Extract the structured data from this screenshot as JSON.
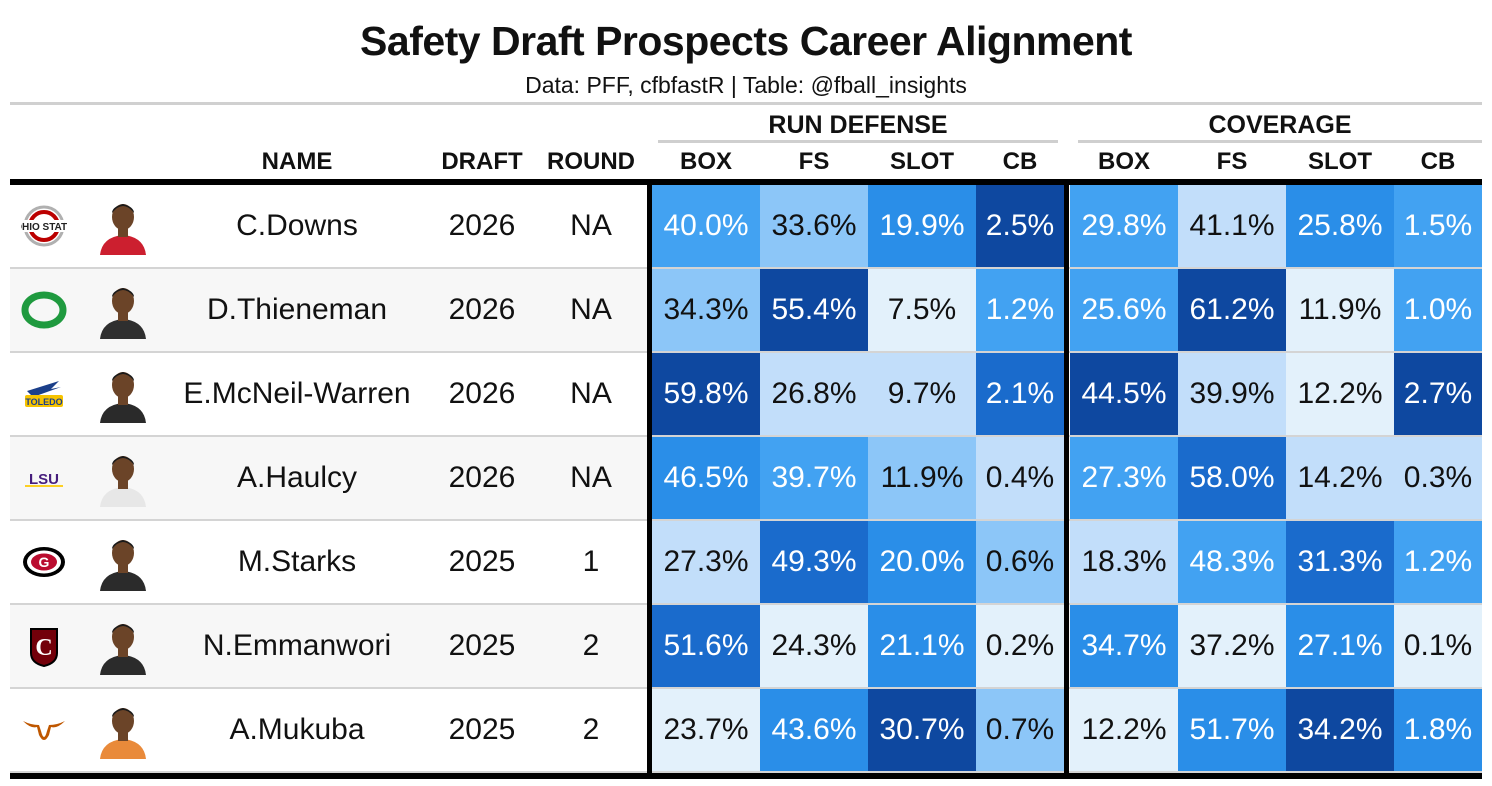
{
  "title": "Safety Draft Prospects Career Alignment",
  "subtitle": "Data: PFF, cfbfastR | Table: @fball_insights",
  "spanners": {
    "run_defense": "RUN DEFENSE",
    "coverage": "COVERAGE"
  },
  "headers": {
    "name": "NAME",
    "draft": "DRAFT",
    "round": "ROUND",
    "rd": [
      "BOX",
      "FS",
      "SLOT",
      "CB"
    ],
    "cov": [
      "BOX",
      "FS",
      "SLOT",
      "CB"
    ]
  },
  "colors": {
    "scale": [
      "#e3f1fb",
      "#c2defa",
      "#8cc6f8",
      "#42a2f2",
      "#2a8ee8",
      "#1a6bcc",
      "#0e48a0"
    ]
  },
  "chart_data": {
    "type": "table",
    "title": "Safety Draft Prospects Career Alignment",
    "columns": [
      "NAME",
      "DRAFT",
      "ROUND",
      "RUN DEFENSE BOX",
      "RUN DEFENSE FS",
      "RUN DEFENSE SLOT",
      "RUN DEFENSE CB",
      "COVERAGE BOX",
      "COVERAGE FS",
      "COVERAGE SLOT",
      "COVERAGE CB"
    ],
    "rows": [
      {
        "school": "Ohio State",
        "name": "C.Downs",
        "draft": "2026",
        "round": "NA",
        "rd": [
          "40.0%",
          "33.6%",
          "19.9%",
          "2.5%"
        ],
        "rd_level": [
          3,
          2,
          4,
          6
        ],
        "cov": [
          "29.8%",
          "41.1%",
          "25.8%",
          "1.5%"
        ],
        "cov_level": [
          3,
          1,
          4,
          3
        ]
      },
      {
        "school": "Oregon",
        "name": "D.Thieneman",
        "draft": "2026",
        "round": "NA",
        "rd": [
          "34.3%",
          "55.4%",
          "7.5%",
          "1.2%"
        ],
        "rd_level": [
          2,
          6,
          0,
          3
        ],
        "cov": [
          "25.6%",
          "61.2%",
          "11.9%",
          "1.0%"
        ],
        "cov_level": [
          3,
          6,
          0,
          3
        ]
      },
      {
        "school": "Toledo",
        "name": "E.McNeil-Warren",
        "draft": "2026",
        "round": "NA",
        "rd": [
          "59.8%",
          "26.8%",
          "9.7%",
          "2.1%"
        ],
        "rd_level": [
          6,
          1,
          1,
          5
        ],
        "cov": [
          "44.5%",
          "39.9%",
          "12.2%",
          "2.7%"
        ],
        "cov_level": [
          6,
          1,
          0,
          6
        ]
      },
      {
        "school": "LSU",
        "name": "A.Haulcy",
        "draft": "2026",
        "round": "NA",
        "rd": [
          "46.5%",
          "39.7%",
          "11.9%",
          "0.4%"
        ],
        "rd_level": [
          4,
          3,
          2,
          1
        ],
        "cov": [
          "27.3%",
          "58.0%",
          "14.2%",
          "0.3%"
        ],
        "cov_level": [
          3,
          5,
          1,
          1
        ]
      },
      {
        "school": "Georgia",
        "name": "M.Starks",
        "draft": "2025",
        "round": "1",
        "rd": [
          "27.3%",
          "49.3%",
          "20.0%",
          "0.6%"
        ],
        "rd_level": [
          1,
          5,
          4,
          2
        ],
        "cov": [
          "18.3%",
          "48.3%",
          "31.3%",
          "1.2%"
        ],
        "cov_level": [
          1,
          3,
          5,
          3
        ]
      },
      {
        "school": "South Carolina",
        "name": "N.Emmanwori",
        "draft": "2025",
        "round": "2",
        "rd": [
          "51.6%",
          "24.3%",
          "21.1%",
          "0.2%"
        ],
        "rd_level": [
          5,
          0,
          4,
          0
        ],
        "cov": [
          "34.7%",
          "37.2%",
          "27.1%",
          "0.1%"
        ],
        "cov_level": [
          4,
          0,
          4,
          0
        ]
      },
      {
        "school": "Texas",
        "name": "A.Mukuba",
        "draft": "2025",
        "round": "2",
        "rd": [
          "23.7%",
          "43.6%",
          "30.7%",
          "0.7%"
        ],
        "rd_level": [
          0,
          4,
          6,
          2
        ],
        "cov": [
          "12.2%",
          "51.7%",
          "34.2%",
          "1.8%"
        ],
        "cov_level": [
          0,
          4,
          6,
          4
        ]
      }
    ]
  }
}
